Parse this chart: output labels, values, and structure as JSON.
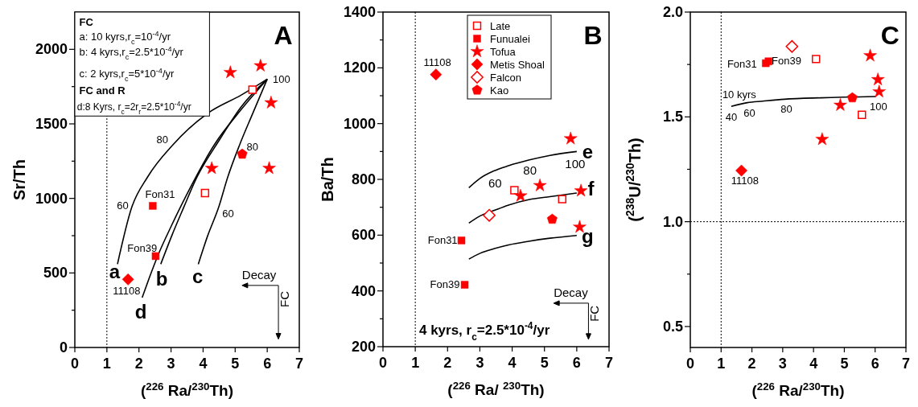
{
  "chart_data": [
    {
      "type": "scatter",
      "xlabel": "($^{226}$ Ra/$^{230}$Th)",
      "ylabel": "Sr/Th",
      "xlim": [
        0,
        7
      ],
      "xticks": [
        0,
        1,
        2,
        3,
        4,
        5,
        6,
        7
      ],
      "ylim": [
        0,
        2250
      ],
      "yticks": [
        0,
        {
          "value": 250,
          "label": null
        },
        500,
        {
          "value": 750,
          "label": null
        },
        1000,
        {
          "value": 1250,
          "label": null
        },
        1500,
        {
          "value": 1750,
          "label": null
        },
        2000
      ],
      "series": [
        {
          "type": "line",
          "color": "#000000",
          "x": [
            1.33,
            1.77,
            2.27,
            3.06,
            4.18,
            5.18,
            6.0
          ],
          "values": [
            559,
            937,
            1144,
            1360,
            1576,
            1692,
            1800
          ]
        },
        {
          "type": "line",
          "color": "#000000",
          "x": [
            2.68,
            3.02,
            3.39,
            3.77,
            4.52,
            5.18,
            6.0
          ],
          "values": [
            559,
            748,
            937,
            1126,
            1396,
            1612,
            1800
          ]
        },
        {
          "type": "line",
          "color": "#000000",
          "x": [
            3.85,
            4.14,
            4.48,
            4.77,
            5.14,
            5.56,
            6.0
          ],
          "values": [
            559,
            748,
            937,
            1144,
            1360,
            1576,
            1800
          ]
        },
        {
          "type": "line",
          "color": "#000000",
          "x": [
            2.1,
            2.31,
            2.6,
            3.02,
            3.6,
            4.35,
            5.18,
            6.0
          ],
          "values": [
            335,
            460,
            622,
            820,
            1072,
            1360,
            1594,
            1800
          ]
        },
        {
          "type": "scatter",
          "color": "#ff0000",
          "marker": "square-open",
          "x": [
            5.54,
            4.06
          ],
          "values": [
            1729,
            1036
          ]
        },
        {
          "type": "scatter",
          "color": "#ff0000",
          "marker": "square",
          "x": [
            2.43,
            2.52
          ],
          "values": [
            950,
            613
          ]
        },
        {
          "type": "scatter",
          "color": "#ff0000",
          "marker": "star",
          "x": [
            4.85,
            5.79,
            6.12,
            4.27,
            6.06
          ],
          "values": [
            1845,
            1890,
            1642,
            1202,
            1202
          ]
        },
        {
          "type": "scatter",
          "color": "#ff0000",
          "marker": "diamond",
          "x": [
            1.66
          ],
          "values": [
            457
          ]
        },
        {
          "type": "scatter",
          "color": "#ff0000",
          "x": [
            5.22
          ],
          "values": [
            1297
          ]
        }
      ],
      "ref_lines": [
        {
          "axis": "x",
          "value": 1,
          "line_style": "dotted",
          "color": "#000000"
        }
      ],
      "annotations": [
        "A",
        "FC",
        "a: 10 kyrs,r$_{c}$=10$^{-4}$/yr",
        "b: 4 kyrs,r$_{c}$=2.5*10$^{-4}$/yr",
        "c: 2 kyrs,r$_{c}$=5*10$^{-4}$/yr",
        "FC and R",
        "d:8 Kyrs, r$_{c}$=2r$_{r}$=2.5*10$^{-4}$/yr",
        "Decay",
        "FC",
        "80",
        "60",
        "100",
        "80",
        "60",
        "Fon31",
        "Fon39",
        "11108",
        "a",
        "b",
        "c",
        "d"
      ]
    },
    {
      "type": "scatter",
      "xlabel": "($^{226}$ Ra/ $^{230}$Th)",
      "ylabel": "Ba/Th",
      "xlim": [
        0,
        7
      ],
      "xticks": [
        0,
        1,
        2,
        3,
        4,
        5,
        6,
        7
      ],
      "ylim": [
        200,
        1400
      ],
      "yticks": [
        200,
        {
          "value": 300,
          "label": null
        },
        400,
        {
          "value": 500,
          "label": null
        },
        600,
        {
          "value": 700,
          "label": null
        },
        800,
        {
          "value": 900,
          "label": null
        },
        1000,
        {
          "value": 1100,
          "label": null
        },
        1200,
        {
          "value": 1300,
          "label": null
        },
        1400
      ],
      "legend": "top right",
      "series": [
        {
          "type": "line",
          "color": "#000000",
          "x": [
            2.66,
            3.01,
            3.43,
            3.89,
            4.51,
            5.17,
            6.0
          ],
          "values": [
            770,
            804,
            830,
            849,
            869,
            886,
            900
          ]
        },
        {
          "type": "line",
          "color": "#000000",
          "x": [
            2.66,
            3.01,
            3.43,
            3.89,
            4.51,
            5.17,
            6.0
          ],
          "values": [
            643,
            669,
            688,
            708,
            727,
            738,
            751
          ]
        },
        {
          "type": "line",
          "color": "#000000",
          "x": [
            2.66,
            3.01,
            3.43,
            3.89,
            4.51,
            5.17,
            6.0
          ],
          "values": [
            514,
            535,
            551,
            565,
            578,
            589,
            599
          ]
        },
        {
          "type": "scatter",
          "name": "Late",
          "color": "#ff0000",
          "marker": "square-open",
          "x": [
            4.07,
            5.55
          ],
          "values": [
            761,
            729
          ]
        },
        {
          "type": "scatter",
          "name": "Funualei",
          "color": "#ff0000",
          "marker": "square",
          "x": [
            2.43,
            2.53
          ],
          "values": [
            581,
            422
          ]
        },
        {
          "type": "scatter",
          "name": "Tofua",
          "color": "#ff0000",
          "marker": "star",
          "x": [
            5.81,
            4.26,
            4.86,
            6.13,
            6.09
          ],
          "values": [
            946,
            741,
            778,
            759,
            629
          ]
        },
        {
          "type": "scatter",
          "name": "Metis Shoal",
          "color": "#ff0000",
          "marker": "diamond",
          "x": [
            1.64
          ],
          "values": [
            1176
          ]
        },
        {
          "type": "scatter",
          "name": "Falcon",
          "color": "#ff0000",
          "marker": "diamond-open",
          "x": [
            3.29
          ],
          "values": [
            671
          ]
        },
        {
          "type": "scatter",
          "name": "Kao",
          "color": "#ff0000",
          "x": [
            5.24
          ],
          "values": [
            657
          ]
        }
      ],
      "ref_lines": [
        {
          "axis": "x",
          "value": 1,
          "line_style": "dotted",
          "color": "#000000"
        }
      ],
      "annotations": [
        "B",
        "4 kyrs, r$_{c}$=2.5*10$^{-4}$/yr",
        "Decay",
        "FC",
        "11108",
        "Fon31",
        "Fon39",
        "60",
        "80",
        "100",
        "e",
        "f",
        "g"
      ]
    },
    {
      "type": "scatter",
      "xlabel": "($^{226}$ Ra/$^{230}$Th)",
      "ylabel": "($^{238}$U/$^{230}$Th)",
      "xlim": [
        0,
        7
      ],
      "xticks": [
        0,
        1,
        2,
        3,
        4,
        5,
        6,
        7
      ],
      "ylim": [
        0.4,
        2.0
      ],
      "yticks": [
        {
          "value": 0.5,
          "label": "0.5"
        },
        {
          "value": 0.75,
          "label": null
        },
        {
          "value": 1,
          "label": "1.0"
        },
        {
          "value": 1.25,
          "label": null
        },
        {
          "value": 1.5,
          "label": "1.5"
        },
        {
          "value": 1.75,
          "label": null
        },
        {
          "value": 2,
          "label": "2.0"
        }
      ],
      "series": [
        {
          "type": "line",
          "color": "#000000",
          "x": [
            1.33,
            1.85,
            2.35,
            3.06,
            4.24,
            6.02
          ],
          "values": [
            1.55,
            1.568,
            1.575,
            1.584,
            1.591,
            1.597
          ]
        },
        {
          "type": "scatter",
          "color": "#ff0000",
          "marker": "square-open",
          "x": [
            4.08,
            5.57
          ],
          "values": [
            1.776,
            1.51
          ]
        },
        {
          "type": "scatter",
          "color": "#ff0000",
          "marker": "square",
          "x": [
            2.45,
            2.54
          ],
          "values": [
            1.756,
            1.765
          ]
        },
        {
          "type": "scatter",
          "color": "#ff0000",
          "marker": "star",
          "x": [
            5.84,
            6.09,
            6.13,
            4.87,
            4.28
          ],
          "values": [
            1.792,
            1.678,
            1.62,
            1.556,
            1.393
          ]
        },
        {
          "type": "scatter",
          "color": "#ff0000",
          "marker": "diamond",
          "x": [
            1.66
          ],
          "values": [
            1.244
          ]
        },
        {
          "type": "scatter",
          "color": "#ff0000",
          "marker": "diamond-open",
          "x": [
            3.3
          ],
          "values": [
            1.836
          ]
        },
        {
          "type": "scatter",
          "color": "#ff0000",
          "x": [
            5.26
          ],
          "values": [
            1.591
          ]
        }
      ],
      "ref_lines": [
        {
          "axis": "x",
          "value": 1,
          "line_style": "dotted",
          "color": "#000000"
        },
        {
          "axis": "y",
          "value": 1,
          "line_style": "dotted",
          "color": "#000000"
        }
      ],
      "annotations": [
        "C",
        "10 kyrs",
        "40",
        "60",
        "80",
        "100",
        "Fon31",
        "Fon39",
        "11108"
      ]
    }
  ]
}
